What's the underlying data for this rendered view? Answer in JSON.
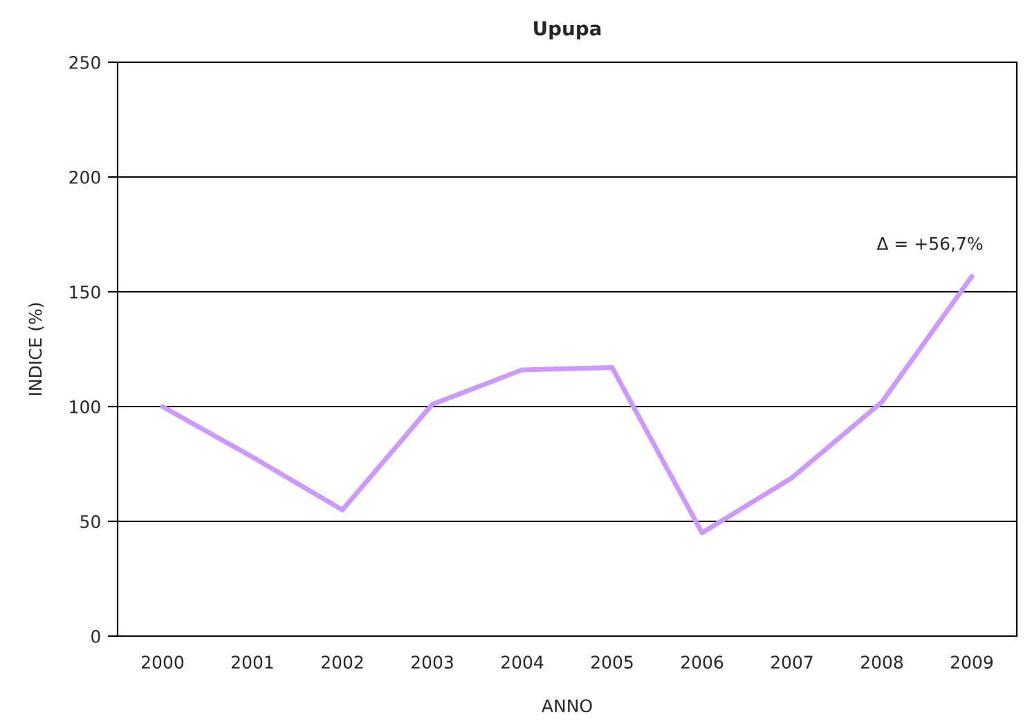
{
  "chart_data": {
    "type": "line",
    "title": "Upupa",
    "xlabel": "ANNO",
    "ylabel": "INDICE (%)",
    "categories": [
      "2000",
      "2001",
      "2002",
      "2003",
      "2004",
      "2005",
      "2006",
      "2007",
      "2008",
      "2009"
    ],
    "series": [
      {
        "color": "#cc99ff",
        "values": [
          100,
          78,
          55,
          101,
          116,
          117,
          45,
          69,
          102,
          156.7
        ]
      }
    ],
    "ylim": [
      0,
      250
    ],
    "yticks": [
      0,
      50,
      100,
      150,
      200,
      250
    ],
    "grid": "y",
    "marker": "none",
    "line_style": "solid",
    "annotations": [
      {
        "text": "Δ = +56,7%",
        "x": "2009",
        "y": 156.7
      }
    ]
  }
}
